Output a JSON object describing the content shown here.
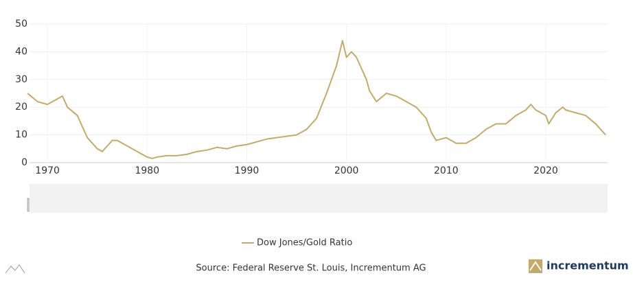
{
  "chart_data": {
    "type": "line",
    "x": [
      1968,
      1969,
      1970,
      1971,
      1971.5,
      1972,
      1973,
      1973.5,
      1974,
      1975,
      1975.5,
      1976,
      1976.5,
      1977,
      1978,
      1979,
      1980,
      1980.5,
      1981,
      1982,
      1983,
      1984,
      1985,
      1986,
      1987,
      1988,
      1989,
      1990,
      1991,
      1992,
      1993,
      1994,
      1995,
      1996,
      1997,
      1998,
      1999,
      1999.6,
      2000,
      2000.5,
      2001,
      2002,
      2002.3,
      2003,
      2004,
      2005,
      2006,
      2007,
      2008,
      2008.5,
      2009,
      2010,
      2011,
      2012,
      2013,
      2014,
      2015,
      2016,
      2017,
      2018,
      2018.5,
      2019,
      2020,
      2020.3,
      2021,
      2021.7,
      2022,
      2023,
      2024,
      2025,
      2025.5,
      2026
    ],
    "series": [
      {
        "name": "Dow Jones/Gold Ratio",
        "color": "#c4a96b",
        "values": [
          25,
          22,
          21,
          23,
          24,
          20,
          17,
          13,
          9,
          5,
          4,
          6,
          8,
          8,
          6,
          4,
          2,
          1.5,
          2,
          2.5,
          2.5,
          3,
          4,
          4.5,
          5.5,
          5,
          6,
          6.5,
          7.5,
          8.5,
          9,
          9.5,
          10,
          12,
          16,
          25,
          35,
          44,
          38,
          40,
          38,
          30,
          26,
          22,
          25,
          24,
          22,
          20,
          16,
          11,
          8,
          9,
          7,
          7,
          9,
          12,
          14,
          14,
          17,
          19,
          21,
          19,
          17,
          14,
          18,
          20,
          19,
          18,
          17,
          14,
          12,
          10
        ]
      }
    ],
    "xlim": [
      1968.2,
      2026.2
    ],
    "xticks": [
      1970,
      1980,
      1990,
      2000,
      2010,
      2020
    ],
    "ylim": [
      0,
      50
    ],
    "yticks": [
      0,
      10,
      20,
      30,
      40,
      50
    ],
    "grid": true,
    "source": "Source: Federal Reserve St. Louis, Incrementum AG"
  },
  "logo": "incrementum"
}
